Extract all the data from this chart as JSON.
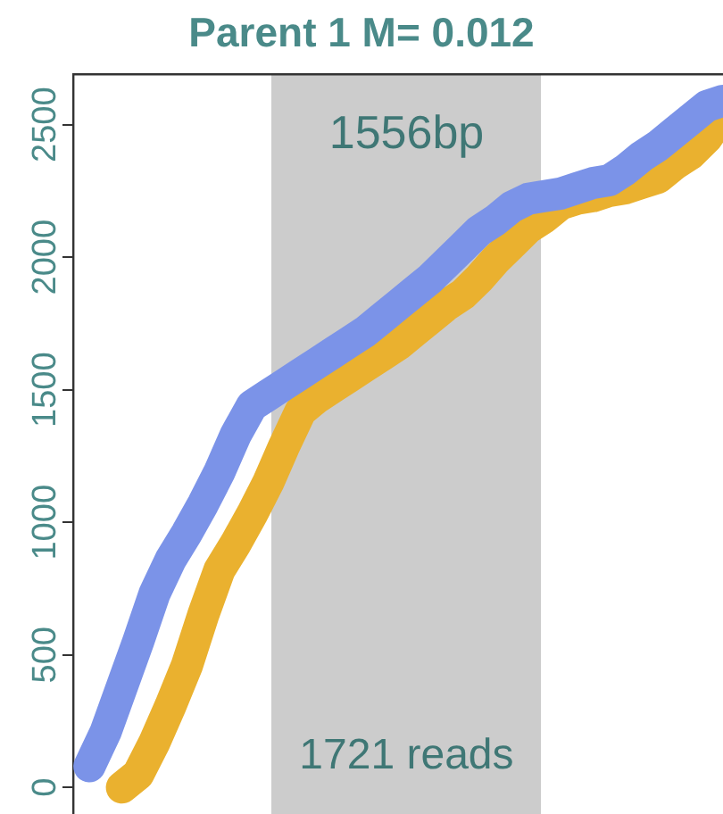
{
  "chart_data": {
    "type": "line",
    "title": "Parent 1 M= 0.012",
    "categories": [
      null,
      null,
      null,
      null,
      null,
      null,
      null,
      null,
      null,
      null,
      null,
      null,
      null,
      null,
      null,
      null,
      null,
      null,
      null,
      null,
      null,
      null,
      null,
      null,
      null,
      null,
      null,
      null,
      null,
      null,
      null,
      null,
      null,
      null,
      null,
      null,
      null,
      null,
      null,
      null,
      null
    ],
    "ylim": [
      -100,
      2690
    ],
    "yticks": [
      0,
      500,
      1000,
      1500,
      2000,
      2500
    ],
    "tick_labels": "y",
    "marker": "none",
    "series": [
      {
        "color": "#7b93e8",
        "values": [
          null,
          80,
          210,
          380,
          550,
          730,
          860,
          960,
          1070,
          1190,
          1330,
          1440,
          1480,
          1520,
          1560,
          1600,
          1640,
          1680,
          1720,
          1770,
          1820,
          1870,
          1920,
          1980,
          2040,
          2100,
          2140,
          2190,
          2220,
          2230,
          2240,
          2260,
          2280,
          2290,
          2330,
          2380,
          2420,
          2470,
          2520,
          2570,
          2590
        ]
      },
      {
        "color": "#eab12f",
        "values": [
          null,
          null,
          null,
          0,
          50,
          170,
          310,
          460,
          650,
          820,
          920,
          1030,
          1150,
          1290,
          1420,
          1470,
          1510,
          1550,
          1590,
          1630,
          1670,
          1720,
          1770,
          1820,
          1860,
          1920,
          1990,
          2050,
          2110,
          2150,
          2200,
          2220,
          2230,
          2250,
          2260,
          2280,
          2300,
          2350,
          2390,
          2450,
          2540
        ]
      }
    ],
    "annotations": [
      "1556bp",
      "1721 reads"
    ]
  }
}
